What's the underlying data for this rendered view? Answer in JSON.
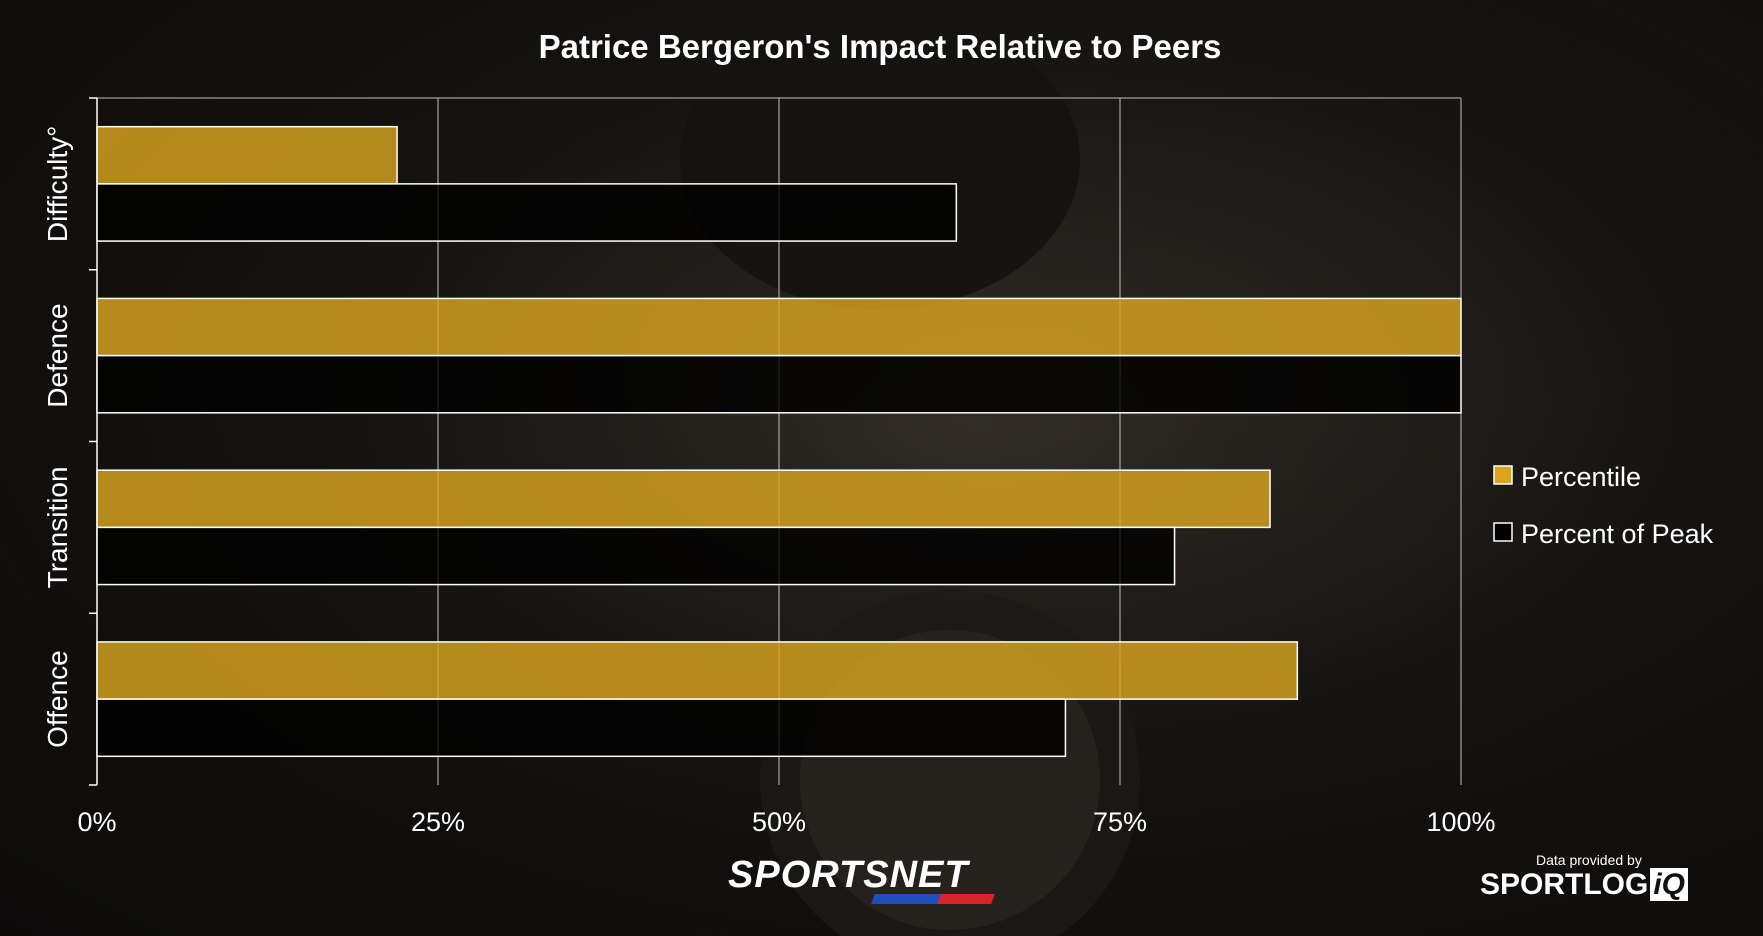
{
  "chart_data": {
    "type": "bar",
    "orientation": "horizontal",
    "title": "Patrice Bergeron's Impact Relative to Peers",
    "categories": [
      "Difficulty°",
      "Defence",
      "Transition",
      "Offence"
    ],
    "series": [
      {
        "name": "Percentile",
        "values": [
          22,
          100,
          86,
          88
        ],
        "color": "#d9a520"
      },
      {
        "name": "Percent of Peak",
        "values": [
          63,
          100,
          79,
          71
        ],
        "color": "#000000"
      }
    ],
    "xlim": [
      0,
      100
    ],
    "xticks": [
      "0%",
      "25%",
      "50%",
      "75%",
      "100%"
    ],
    "grid": true,
    "legend_position": "right"
  },
  "branding": {
    "broadcaster": "SPORTSNET",
    "credit_prefix": "Data provided by",
    "credit_brand": "SPORTLOG",
    "credit_brand_suffix": "iQ"
  },
  "colors": {
    "percentile_fill": "#d9a520",
    "peak_fill": "#000000",
    "outline": "#ffffff",
    "text": "#ffffff"
  }
}
